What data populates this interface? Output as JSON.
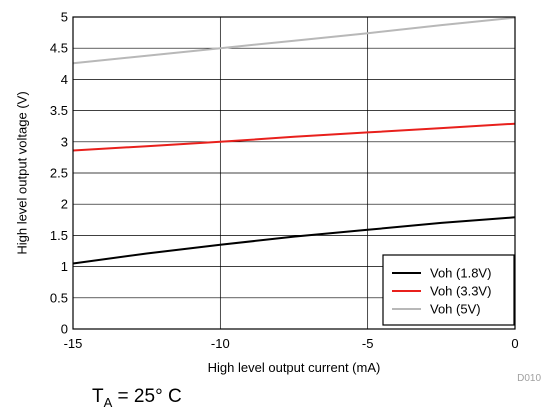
{
  "chart_data": {
    "type": "line",
    "title": "",
    "xlabel": "High level output current (mA)",
    "ylabel": "High level output voltage (V)",
    "xlim": [
      -15,
      0
    ],
    "ylim": [
      0,
      5
    ],
    "xticks": [
      -15,
      -10,
      -5,
      0
    ],
    "yticks": [
      0,
      0.5,
      1,
      1.5,
      2,
      2.5,
      3,
      3.5,
      4,
      4.5,
      5
    ],
    "xtick_labels": [
      "-15",
      "-10",
      "-5",
      "0"
    ],
    "ytick_labels": [
      "0",
      "0.5",
      "1",
      "1.5",
      "2",
      "2.5",
      "3",
      "3.5",
      "4",
      "4.5",
      "5"
    ],
    "grid": true,
    "legend_position": "bottom-right",
    "series": [
      {
        "name": "Voh (1.8V)",
        "color": "#000000",
        "x": [
          -15,
          -12.5,
          -10,
          -7.5,
          -5,
          -2.5,
          0
        ],
        "y": [
          1.05,
          1.21,
          1.35,
          1.48,
          1.59,
          1.7,
          1.79
        ]
      },
      {
        "name": "Voh (3.3V)",
        "color": "#e8201c",
        "x": [
          -15,
          -12.5,
          -10,
          -7.5,
          -5,
          -2.5,
          0
        ],
        "y": [
          2.86,
          2.93,
          3.0,
          3.08,
          3.15,
          3.22,
          3.29
        ]
      },
      {
        "name": "Voh (5V)",
        "color": "#b8b8b8",
        "x": [
          -15,
          -12.5,
          -10,
          -7.5,
          -5,
          -2.5,
          0
        ],
        "y": [
          4.26,
          4.38,
          4.5,
          4.62,
          4.74,
          4.87,
          4.99
        ]
      }
    ]
  },
  "figure_code": "D010",
  "condition": {
    "symbol": "T",
    "subscript": "A",
    "rest": " = 25° C"
  }
}
